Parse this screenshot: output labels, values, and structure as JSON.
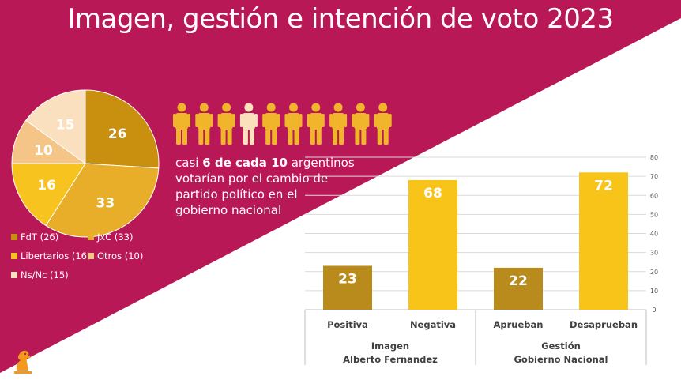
{
  "title": "Imagen, gestión e intención de voto 2023",
  "colors": {
    "magenta": "#b81856",
    "fdt": "#c9900f",
    "jxc": "#e8ae2a",
    "libertarios": "#f7c31e",
    "otros": "#f5c487",
    "nsnc": "#fbe0c0",
    "bar_dark": "#b98a1c",
    "bar_light": "#f8c41a",
    "person_gold": "#f0b52a",
    "person_pale": "#fbe2bd"
  },
  "caption": {
    "line1_pre": "casi ",
    "line1_bold": "6 de cada 10",
    "line1_post": " argentinos",
    "line2": "votarían por el cambio de",
    "line3": "partido político en el",
    "line4": "gobierno nacional"
  },
  "people_icons": [
    "gold",
    "gold",
    "gold",
    "pale",
    "gold",
    "gold",
    "gold",
    "gold",
    "gold",
    "gold"
  ],
  "chart_data": [
    {
      "type": "pie",
      "slices": [
        {
          "label": "FdT (26)",
          "value": 26,
          "display": "26",
          "color": "#c9900f"
        },
        {
          "label": "JxC (33)",
          "value": 33,
          "display": "33",
          "color": "#e8ae2a"
        },
        {
          "label": "Libertarios (16)",
          "value": 16,
          "display": "16",
          "color": "#f7c31e"
        },
        {
          "label": "Otros (10)",
          "value": 10,
          "display": "10",
          "color": "#f5c487"
        },
        {
          "label": "Ns/Nc (15)",
          "value": 15,
          "display": "15",
          "color": "#fbe0c0"
        }
      ]
    },
    {
      "type": "bar",
      "categories": [
        "Positiva",
        "Negativa",
        "Aprueban",
        "Desaprueban"
      ],
      "values": [
        23,
        68,
        22,
        72
      ],
      "bar_colors": [
        "#b98a1c",
        "#f8c41a",
        "#b98a1c",
        "#f8c41a"
      ],
      "groups": [
        {
          "line1": "Imagen",
          "line2": "Alberto Fernandez"
        },
        {
          "line1": "Gestión",
          "line2": "Gobierno Nacional"
        }
      ],
      "ylim": [
        0,
        80
      ],
      "yticks": [
        "0",
        "10",
        "20",
        "30",
        "40",
        "50",
        "60",
        "70",
        "80"
      ],
      "grid": true
    }
  ]
}
